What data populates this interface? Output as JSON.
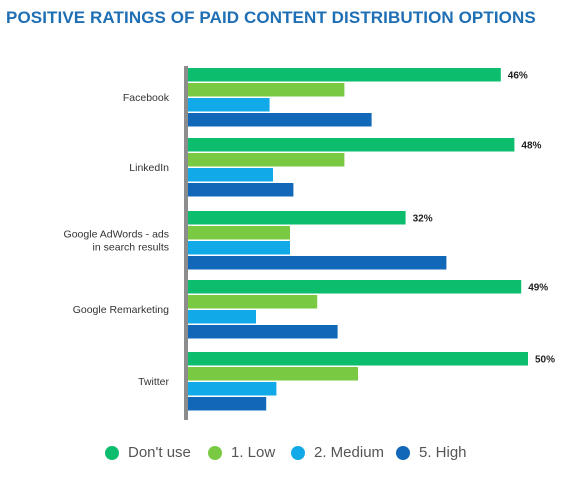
{
  "chart_data": {
    "type": "bar",
    "orientation": "horizontal",
    "title": "POSITIVE RATINGS OF PAID CONTENT DISTRIBUTION OPTIONS",
    "categories": [
      [
        "Facebook"
      ],
      [
        "LinkedIn"
      ],
      [
        "Google AdWords - ads",
        "in search results"
      ],
      [
        "Google Remarketing"
      ],
      [
        "Twitter"
      ]
    ],
    "series": [
      {
        "name": "Don't use",
        "color": "#0dbd6e",
        "values": [
          46,
          48,
          32,
          49,
          50
        ],
        "labels": [
          "46%",
          "48%",
          "32%",
          "49%",
          "50%"
        ]
      },
      {
        "name": "1. Low",
        "color": "#7ac943",
        "values": [
          23,
          23,
          15,
          19,
          25
        ]
      },
      {
        "name": "2. Medium",
        "color": "#12a9e8",
        "values": [
          12,
          12.5,
          15,
          10,
          13
        ]
      },
      {
        "name": "5. High",
        "color": "#1167b8",
        "values": [
          27,
          15.5,
          38,
          22,
          11.5
        ]
      }
    ],
    "xlim": [
      0,
      50
    ],
    "legend_position": "bottom",
    "grid": false
  }
}
